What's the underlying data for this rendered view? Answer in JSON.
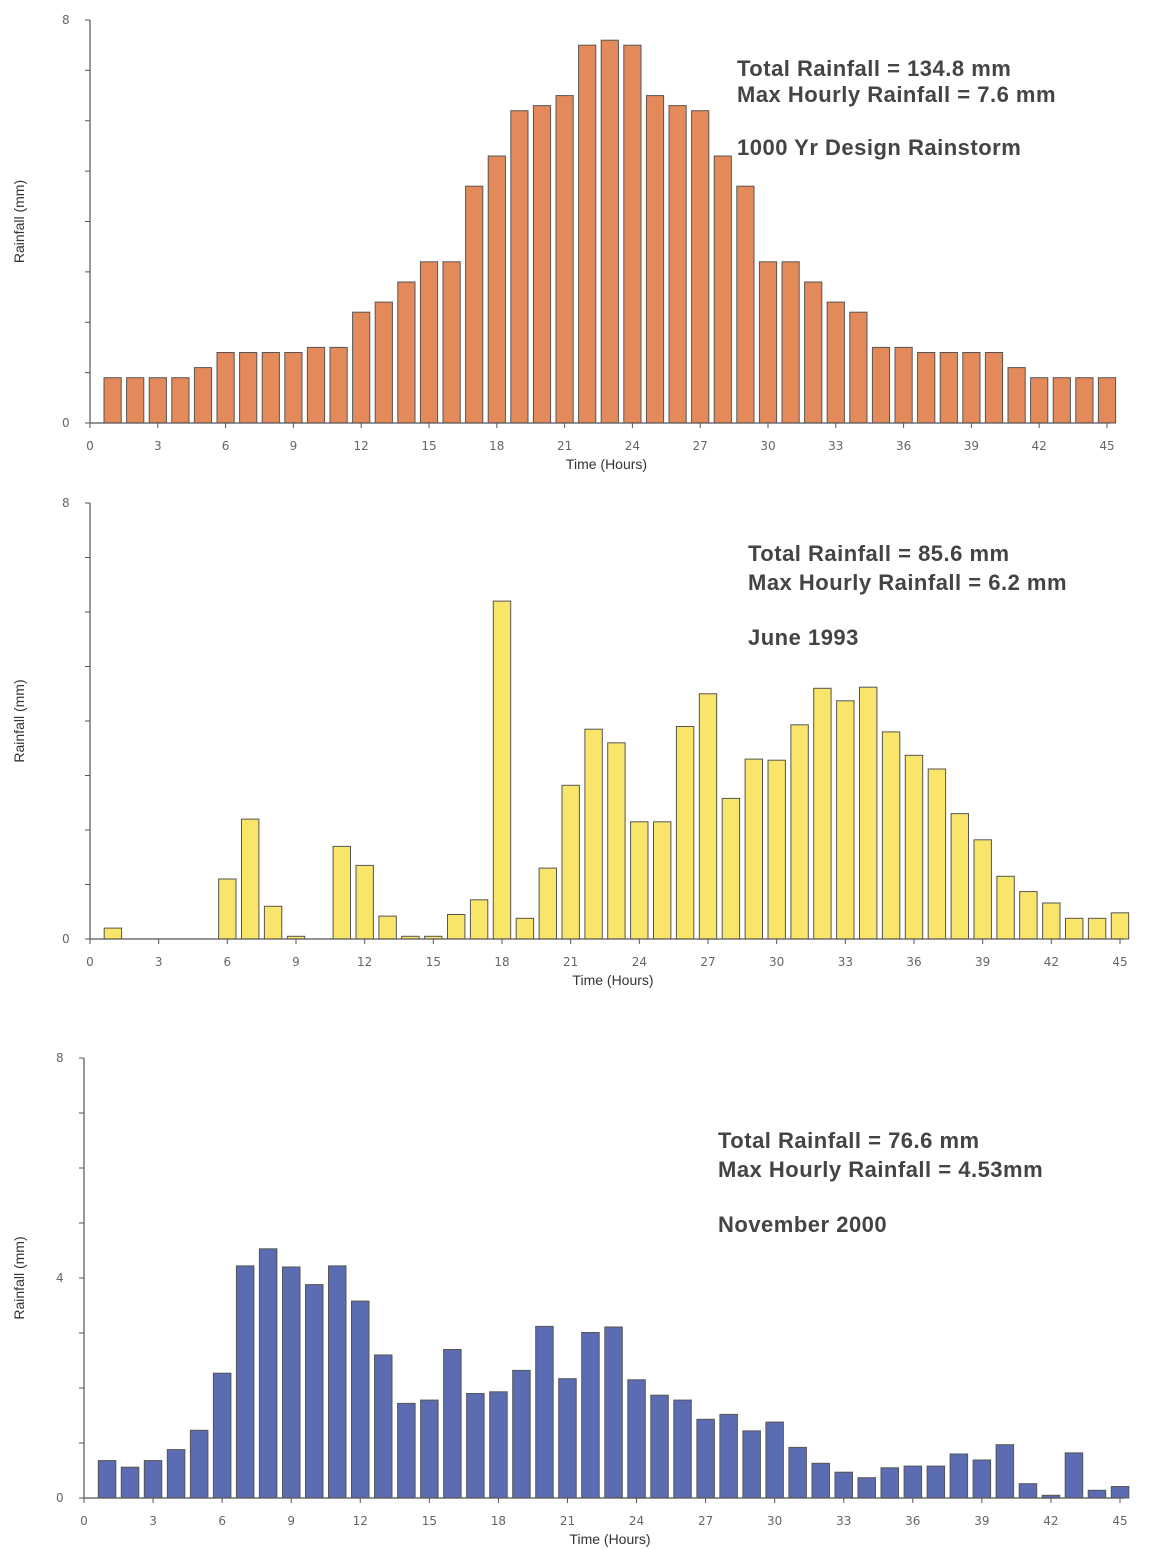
{
  "chart_data": [
    {
      "type": "bar",
      "color": "#e4895a",
      "xlabel": "Time (Hours)",
      "ylabel": "Rainfall (mm)",
      "xlim": [
        0,
        45
      ],
      "ylim": [
        0,
        8
      ],
      "x_ticks": [
        "0",
        "3",
        "6",
        "9",
        "12",
        "15",
        "18",
        "21",
        "24",
        "27",
        "30",
        "33",
        "36",
        "39",
        "42",
        "45"
      ],
      "y_ticks": [
        "0",
        "8"
      ],
      "annotations": [
        "Total Rainfall = 134.8 mm",
        "Max Hourly Rainfall = 7.6 mm",
        "1000 Yr Design Rainstorm"
      ],
      "x": [
        1,
        2,
        3,
        4,
        5,
        6,
        7,
        8,
        9,
        10,
        11,
        12,
        13,
        14,
        15,
        16,
        17,
        18,
        19,
        20,
        21,
        22,
        23,
        24,
        25,
        26,
        27,
        28,
        29,
        30,
        31,
        32,
        33,
        34,
        35,
        36,
        37,
        38,
        39,
        40,
        41,
        42,
        43,
        44,
        45
      ],
      "values": [
        0.9,
        0.9,
        0.9,
        0.9,
        1.1,
        1.4,
        1.4,
        1.4,
        1.4,
        1.5,
        1.5,
        2.2,
        2.4,
        2.8,
        3.2,
        3.2,
        4.7,
        5.3,
        6.2,
        6.3,
        6.5,
        7.5,
        7.6,
        7.5,
        6.5,
        6.3,
        6.2,
        5.3,
        4.7,
        3.2,
        3.2,
        2.8,
        2.4,
        2.2,
        1.5,
        1.5,
        1.4,
        1.4,
        1.4,
        1.4,
        1.1,
        0.9,
        0.9,
        0.9,
        0.9
      ]
    },
    {
      "type": "bar",
      "color": "#f8e56a",
      "xlabel": "Time (Hours)",
      "ylabel": "Rainfall (mm)",
      "xlim": [
        0,
        45
      ],
      "ylim": [
        0,
        8
      ],
      "x_ticks": [
        "0",
        "3",
        "6",
        "9",
        "12",
        "15",
        "18",
        "21",
        "24",
        "27",
        "30",
        "33",
        "36",
        "39",
        "42",
        "45"
      ],
      "y_ticks": [
        "0",
        "8"
      ],
      "annotations": [
        "Total Rainfall = 85.6 mm",
        "Max Hourly Rainfall = 6.2 mm",
        "June 1993"
      ],
      "x": [
        1,
        2,
        3,
        4,
        5,
        6,
        7,
        8,
        9,
        10,
        11,
        12,
        13,
        14,
        15,
        16,
        17,
        18,
        19,
        20,
        21,
        22,
        23,
        24,
        25,
        26,
        27,
        28,
        29,
        30,
        31,
        32,
        33,
        34,
        35,
        36,
        37,
        38,
        39,
        40,
        41,
        42,
        43,
        44,
        45
      ],
      "values": [
        0.2,
        0,
        0,
        0,
        0,
        1.1,
        2.2,
        0.6,
        0.05,
        0,
        1.7,
        1.35,
        0.42,
        0.05,
        0.05,
        0.45,
        0.72,
        6.2,
        0.38,
        1.3,
        2.82,
        3.85,
        3.6,
        2.15,
        2.15,
        3.9,
        4.5,
        2.58,
        3.3,
        3.28,
        3.93,
        4.6,
        4.37,
        4.62,
        3.8,
        3.37,
        3.12,
        2.3,
        1.82,
        1.15,
        0.87,
        0.66,
        0.38,
        0.38,
        0.48
      ]
    },
    {
      "type": "bar",
      "color": "#5c6cb3",
      "xlabel": "Time (Hours)",
      "ylabel": "Rainfall (mm)",
      "xlim": [
        0,
        45
      ],
      "ylim": [
        0,
        8
      ],
      "x_ticks": [
        "0",
        "3",
        "6",
        "9",
        "12",
        "15",
        "18",
        "21",
        "24",
        "27",
        "30",
        "33",
        "36",
        "39",
        "42",
        "45"
      ],
      "y_ticks": [
        "0",
        "4",
        "8"
      ],
      "annotations": [
        "Total Rainfall = 76.6 mm",
        "Max Hourly Rainfall = 4.53mm",
        "November 2000"
      ],
      "x": [
        1,
        2,
        3,
        4,
        5,
        6,
        7,
        8,
        9,
        10,
        11,
        12,
        13,
        14,
        15,
        16,
        17,
        18,
        19,
        20,
        21,
        22,
        23,
        24,
        25,
        26,
        27,
        28,
        29,
        30,
        31,
        32,
        33,
        34,
        35,
        36,
        37,
        38,
        39,
        40,
        41,
        42,
        43,
        44,
        45
      ],
      "values": [
        0.68,
        0.56,
        0.68,
        0.88,
        1.23,
        2.27,
        4.22,
        4.53,
        4.2,
        3.88,
        4.22,
        3.58,
        2.6,
        1.72,
        1.78,
        2.7,
        1.9,
        1.93,
        2.32,
        3.12,
        2.17,
        3.01,
        3.11,
        2.15,
        1.87,
        1.78,
        1.43,
        1.52,
        1.22,
        1.38,
        0.92,
        0.63,
        0.47,
        0.37,
        0.55,
        0.58,
        0.58,
        0.8,
        0.69,
        0.97,
        0.26,
        0.05,
        0.82,
        0.14,
        0.21
      ]
    }
  ]
}
